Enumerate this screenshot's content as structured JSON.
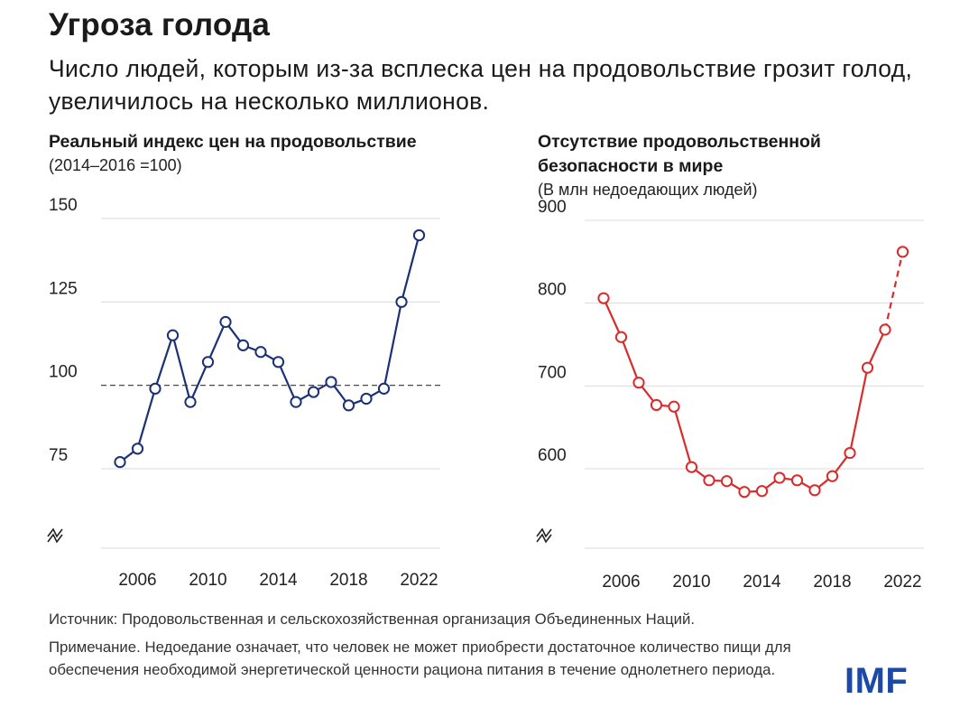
{
  "title": "Угроза голода",
  "subtitle": "Число людей, которым из-за всплеска цен на продовольствие грозит голод, увеличилось на несколько миллионов.",
  "footer": {
    "source": "Источник: Продовольственная и сельскохозяйственная организация Объединенных Наций.",
    "note": "Примечание. Недоедание означает, что человек не может приобрести достаточное количество пищи для обеспечения необходимой энергетической ценности рациона питания в течение однолетнего периода."
  },
  "logo": "IMF",
  "colors": {
    "left_series": "#1a3275",
    "right_series": "#d92b2b",
    "logo": "#1a49a8",
    "grid": "#d9d9d9"
  },
  "chart_data": [
    {
      "type": "line",
      "title": "Реальный индекс цен на продовольствие",
      "subtitle": "(2014–2016 =100)",
      "x": [
        2005,
        2006,
        2007,
        2008,
        2009,
        2010,
        2011,
        2012,
        2013,
        2014,
        2015,
        2016,
        2017,
        2018,
        2019,
        2020,
        2021,
        2022
      ],
      "values": [
        77,
        81,
        99,
        115,
        95,
        107,
        119,
        112,
        110,
        107,
        95,
        98,
        101,
        94,
        96,
        99,
        125,
        145
      ],
      "ylim": [
        75,
        150
      ],
      "yticks": [
        75,
        100,
        125,
        150
      ],
      "xticks": [
        2006,
        2010,
        2014,
        2018,
        2022
      ],
      "reference_line": 100,
      "axis_break": true
    },
    {
      "type": "line",
      "title": "Отсутствие продовольственной безопасности в мире",
      "subtitle": "(В млн недоедающих людей)",
      "x": [
        2005,
        2006,
        2007,
        2008,
        2009,
        2010,
        2011,
        2012,
        2013,
        2014,
        2015,
        2016,
        2017,
        2018,
        2019,
        2020,
        2021,
        2022
      ],
      "values": [
        806,
        759,
        704,
        677,
        675,
        602,
        586,
        585,
        572,
        573,
        589,
        586,
        574,
        591,
        619,
        722,
        768,
        862
      ],
      "projected_from": 2021,
      "ylim": [
        600,
        900
      ],
      "yticks": [
        600,
        700,
        800,
        900
      ],
      "xticks": [
        2006,
        2010,
        2014,
        2018,
        2022
      ],
      "axis_break": true
    }
  ]
}
